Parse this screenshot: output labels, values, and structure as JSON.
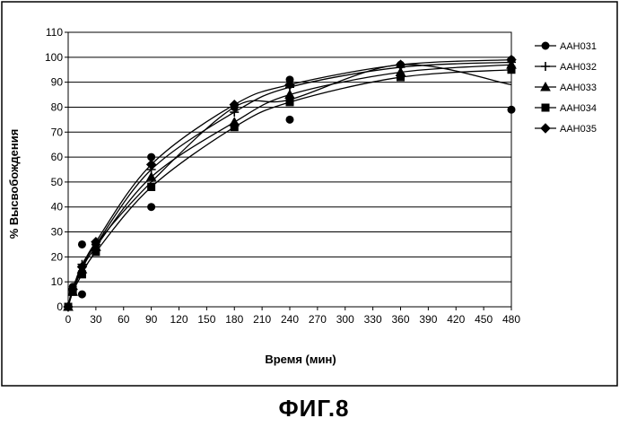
{
  "caption": "ФИГ.8",
  "chart_data": {
    "type": "scatter",
    "title": "",
    "xlabel": "Время (мин)",
    "ylabel": "% Высвобождения",
    "xlim": [
      0,
      480
    ],
    "ylim": [
      0,
      110
    ],
    "xticks": [
      0,
      30,
      60,
      90,
      120,
      150,
      180,
      210,
      240,
      270,
      300,
      330,
      360,
      390,
      420,
      450,
      480
    ],
    "yticks": [
      0,
      10,
      20,
      30,
      40,
      50,
      60,
      70,
      80,
      90,
      100,
      110
    ],
    "grid": "horizontal",
    "legend_position": "right",
    "series": [
      {
        "name": "AAH031",
        "marker": "circle",
        "points": [
          [
            0,
            0
          ],
          [
            5,
            8
          ],
          [
            15,
            5
          ],
          [
            15,
            25
          ],
          [
            30,
            25
          ],
          [
            90,
            40
          ],
          [
            90,
            60
          ],
          [
            180,
            80
          ],
          [
            240,
            75
          ],
          [
            240,
            91
          ],
          [
            360,
            97
          ],
          [
            480,
            79
          ],
          [
            480,
            99
          ]
        ]
      },
      {
        "name": "AAH032",
        "marker": "plus",
        "points": [
          [
            0,
            0
          ],
          [
            5,
            7
          ],
          [
            15,
            17
          ],
          [
            30,
            25
          ],
          [
            90,
            55
          ],
          [
            180,
            78
          ],
          [
            240,
            88
          ],
          [
            360,
            96
          ],
          [
            480,
            98
          ]
        ]
      },
      {
        "name": "AAH033",
        "marker": "triangle",
        "points": [
          [
            0,
            0
          ],
          [
            5,
            6
          ],
          [
            15,
            15
          ],
          [
            30,
            24
          ],
          [
            90,
            52
          ],
          [
            180,
            74
          ],
          [
            240,
            85
          ],
          [
            360,
            94
          ],
          [
            480,
            97
          ]
        ]
      },
      {
        "name": "AAH034",
        "marker": "square",
        "points": [
          [
            0,
            0
          ],
          [
            5,
            6
          ],
          [
            15,
            13
          ],
          [
            30,
            22
          ],
          [
            90,
            48
          ],
          [
            180,
            72
          ],
          [
            240,
            82
          ],
          [
            360,
            92
          ],
          [
            480,
            95
          ]
        ]
      },
      {
        "name": "AAH035",
        "marker": "diamond",
        "points": [
          [
            0,
            0
          ],
          [
            5,
            7
          ],
          [
            15,
            16
          ],
          [
            30,
            26
          ],
          [
            90,
            57
          ],
          [
            180,
            81
          ],
          [
            240,
            89
          ],
          [
            360,
            97
          ],
          [
            480,
            99
          ]
        ]
      }
    ]
  }
}
